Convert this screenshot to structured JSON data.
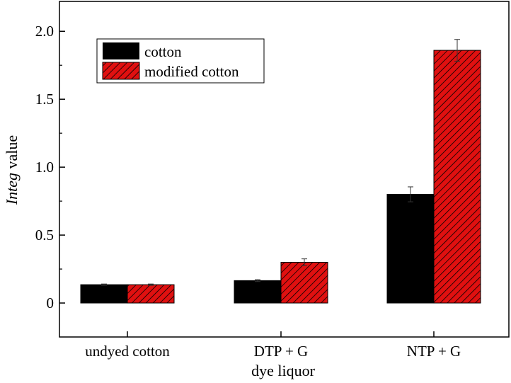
{
  "chart_data": {
    "type": "bar",
    "title": "",
    "xlabel": "dye liquor",
    "ylabel_italic": "Integ",
    "ylabel_rest": " value",
    "categories": [
      "undyed cotton",
      "DTP + G",
      "NTP + G"
    ],
    "series": [
      {
        "name": "cotton",
        "color": "#000000",
        "pattern": "solid",
        "values": [
          0.135,
          0.165,
          0.8
        ],
        "errors": [
          0.005,
          0.007,
          0.055
        ]
      },
      {
        "name": "modified cotton",
        "color": "#e01010",
        "pattern": "diagonal-hatch",
        "values": [
          0.135,
          0.3,
          1.86
        ],
        "errors": [
          0.005,
          0.025,
          0.08
        ]
      }
    ],
    "ylim": [
      -0.25,
      2.22
    ],
    "yticks": [
      0,
      0.5,
      1.0,
      1.5,
      2.0
    ],
    "ytick_labels": [
      "0",
      "0.5",
      "1.0",
      "1.5",
      "2.0"
    ],
    "grid": false,
    "legend_position": "top-left"
  }
}
